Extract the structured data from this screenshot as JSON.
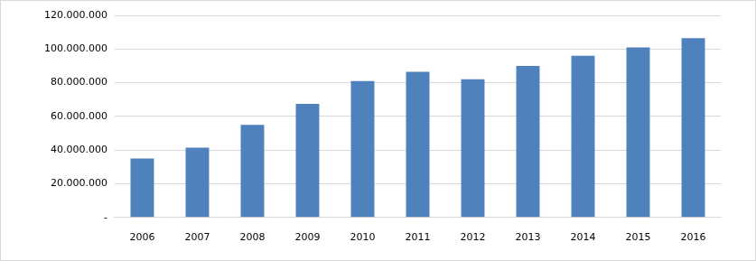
{
  "chart_data": {
    "type": "bar",
    "categories": [
      "2006",
      "2007",
      "2008",
      "2009",
      "2010",
      "2011",
      "2012",
      "2013",
      "2014",
      "2015",
      "2016"
    ],
    "values": [
      35000000,
      41500000,
      55000000,
      67500000,
      81000000,
      86500000,
      82000000,
      90000000,
      96000000,
      101000000,
      106500000
    ],
    "color": "#4f81bd",
    "ylim": [
      0,
      120000000
    ],
    "yticks": [
      {
        "value": 0,
        "label": "-"
      },
      {
        "value": 20000000,
        "label": "20.000.000"
      },
      {
        "value": 40000000,
        "label": "40.000.000"
      },
      {
        "value": 60000000,
        "label": "60.000.000"
      },
      {
        "value": 80000000,
        "label": "80.000.000"
      },
      {
        "value": 100000000,
        "label": "100.000.000"
      },
      {
        "value": 120000000,
        "label": "120.000.000"
      }
    ],
    "grid": true
  }
}
